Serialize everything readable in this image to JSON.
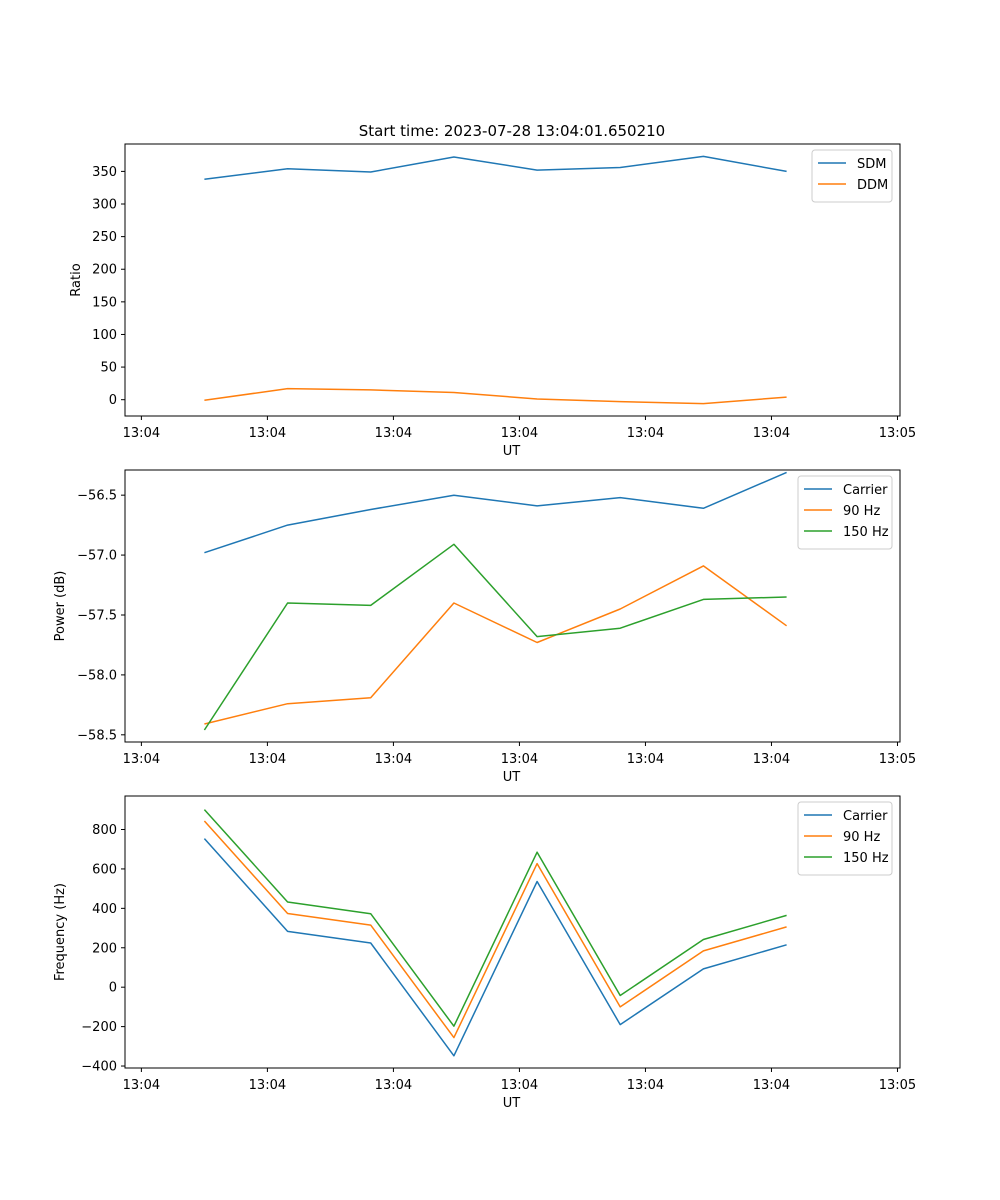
{
  "figure_title": "Start time: 2023-07-28 13:04:01.650210",
  "chart_data": [
    {
      "type": "line",
      "title": "Start time: 2023-07-28 13:04:01.650210",
      "xlabel": "UT",
      "ylabel": "Ratio",
      "x": [
        0.5,
        1.16,
        1.82,
        2.48,
        3.14,
        3.8,
        4.46,
        5.12
      ],
      "xlim": [
        -0.13,
        6.02
      ],
      "ylim": [
        -25,
        392
      ],
      "xticks": [
        0,
        1,
        2,
        3,
        4,
        5,
        6
      ],
      "xtick_labels": [
        "13:04",
        "13:04",
        "13:04",
        "13:04",
        "13:04",
        "13:04",
        "13:05"
      ],
      "yticks": [
        0,
        50,
        100,
        150,
        200,
        250,
        300,
        350
      ],
      "ytick_labels": [
        "0",
        "50",
        "100",
        "150",
        "200",
        "250",
        "300",
        "350"
      ],
      "legend_position": "top-right",
      "series": [
        {
          "name": "SDM",
          "color": "#1f77b4",
          "values": [
            338,
            354,
            349,
            372,
            352,
            356,
            373,
            350
          ]
        },
        {
          "name": "DDM",
          "color": "#ff7f0e",
          "values": [
            -1,
            17,
            15,
            11,
            1,
            -3,
            -6,
            4
          ]
        }
      ]
    },
    {
      "type": "line",
      "title": "",
      "xlabel": "UT",
      "ylabel": "Power (dB)",
      "x": [
        0.5,
        1.16,
        1.82,
        2.48,
        3.14,
        3.8,
        4.46,
        5.12
      ],
      "xlim": [
        -0.13,
        6.02
      ],
      "ylim": [
        -58.56,
        -56.29
      ],
      "xticks": [
        0,
        1,
        2,
        3,
        4,
        5,
        6
      ],
      "xtick_labels": [
        "13:04",
        "13:04",
        "13:04",
        "13:04",
        "13:04",
        "13:04",
        "13:05"
      ],
      "yticks": [
        -58.5,
        -58.0,
        -57.5,
        -57.0,
        -56.5
      ],
      "ytick_labels": [
        "−58.5",
        "−58.0",
        "−57.5",
        "−57.0",
        "−56.5"
      ],
      "legend_position": "top-right",
      "series": [
        {
          "name": "Carrier",
          "color": "#1f77b4",
          "values": [
            -56.98,
            -56.75,
            -56.62,
            -56.5,
            -56.59,
            -56.52,
            -56.61,
            -56.31
          ]
        },
        {
          "name": "90 Hz",
          "color": "#ff7f0e",
          "values": [
            -58.41,
            -58.24,
            -58.19,
            -57.4,
            -57.73,
            -57.45,
            -57.09,
            -57.59
          ]
        },
        {
          "name": "150 Hz",
          "color": "#2ca02c",
          "values": [
            -58.46,
            -57.4,
            -57.42,
            -56.91,
            -57.68,
            -57.61,
            -57.37,
            -57.35
          ]
        }
      ]
    },
    {
      "type": "line",
      "title": "",
      "xlabel": "UT",
      "ylabel": "Frequency (Hz)",
      "x": [
        0.5,
        1.16,
        1.82,
        2.48,
        3.14,
        3.8,
        4.46,
        5.12
      ],
      "xlim": [
        -0.13,
        6.02
      ],
      "ylim": [
        -410,
        970
      ],
      "xticks": [
        0,
        1,
        2,
        3,
        4,
        5,
        6
      ],
      "xtick_labels": [
        "13:04",
        "13:04",
        "13:04",
        "13:04",
        "13:04",
        "13:04",
        "13:05"
      ],
      "yticks": [
        -400,
        -200,
        0,
        200,
        400,
        600,
        800
      ],
      "ytick_labels": [
        "−400",
        "−200",
        "0",
        "200",
        "400",
        "600",
        "800"
      ],
      "legend_position": "top-right",
      "series": [
        {
          "name": "Carrier",
          "color": "#1f77b4",
          "values": [
            754,
            283,
            224,
            -348,
            536,
            -190,
            93,
            215
          ]
        },
        {
          "name": "90 Hz",
          "color": "#ff7f0e",
          "values": [
            843,
            374,
            315,
            -256,
            627,
            -100,
            184,
            306
          ]
        },
        {
          "name": "150 Hz",
          "color": "#2ca02c",
          "values": [
            901,
            432,
            373,
            -198,
            685,
            -42,
            242,
            364
          ]
        }
      ]
    }
  ]
}
